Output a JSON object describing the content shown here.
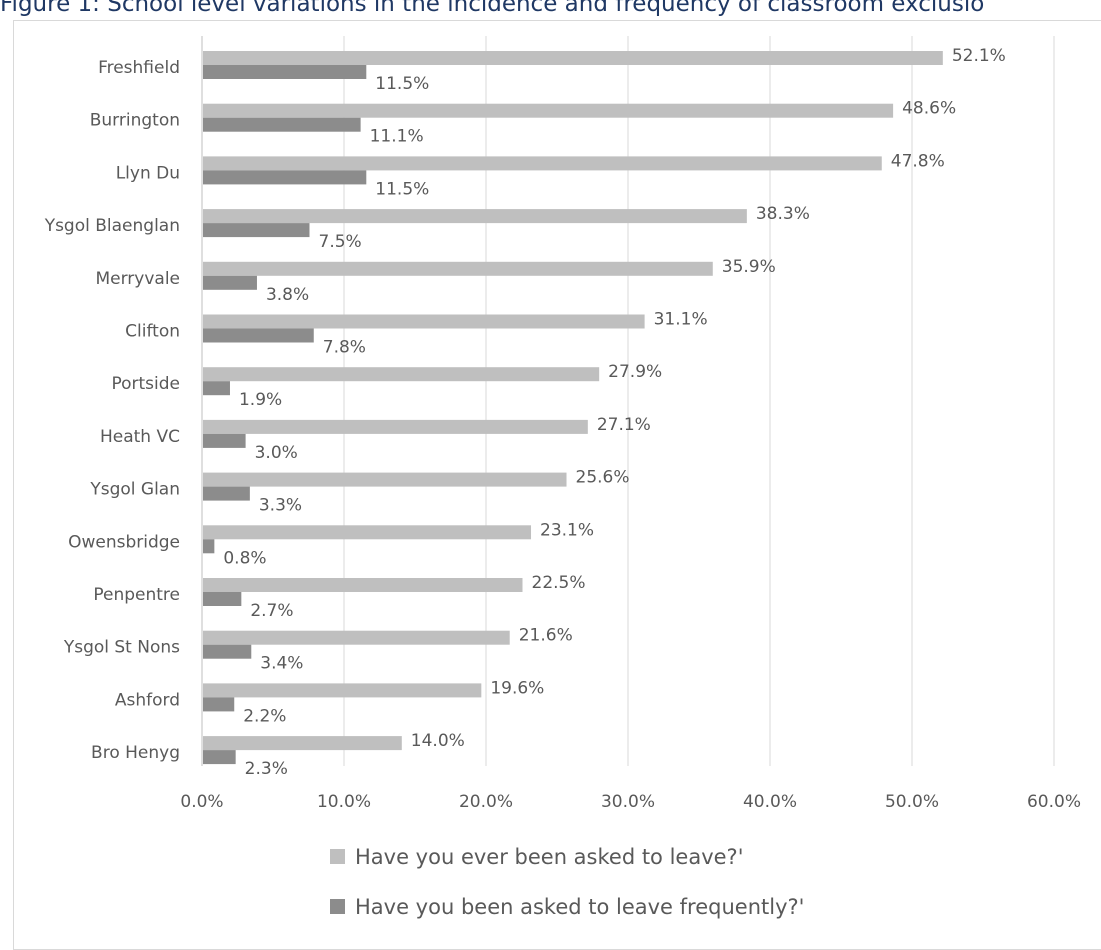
{
  "title": "Figure 1: School level variations in the incidence and frequency of classroom exclusio",
  "chart_data": {
    "type": "bar",
    "orientation": "horizontal",
    "categories": [
      "Freshfield",
      "Burrington",
      "Llyn Du",
      "Ysgol Blaenglan",
      "Merryvale",
      "Clifton",
      "Portside",
      "Heath VC",
      "Ysgol Glan",
      "Owensbridge",
      "Penpentre",
      "Ysgol St Nons",
      "Ashford",
      "Bro Henyg"
    ],
    "series": [
      {
        "name": "Have you ever been asked to leave?'",
        "color": "#bfbfbf",
        "values": [
          52.1,
          48.6,
          47.8,
          38.3,
          35.9,
          31.1,
          27.9,
          27.1,
          25.6,
          23.1,
          22.5,
          21.6,
          19.6,
          14.0
        ],
        "labels": [
          "52.1%",
          "48.6%",
          "47.8%",
          "38.3%",
          "35.9%",
          "31.1%",
          "27.9%",
          "27.1%",
          "25.6%",
          "23.1%",
          "22.5%",
          "21.6%",
          "19.6%",
          "14.0%"
        ]
      },
      {
        "name": "Have you been asked to leave frequently?'",
        "color": "#8c8c8c",
        "values": [
          11.5,
          11.1,
          11.5,
          7.5,
          3.8,
          7.8,
          1.9,
          3.0,
          3.3,
          0.8,
          2.7,
          3.4,
          2.2,
          2.3
        ],
        "labels": [
          "11.5%",
          "11.1%",
          "11.5%",
          "7.5%",
          "3.8%",
          "7.8%",
          "1.9%",
          "3.0%",
          "3.3%",
          "0.8%",
          "2.7%",
          "3.4%",
          "2.2%",
          "2.3%"
        ]
      }
    ],
    "xlim": [
      0,
      60
    ],
    "xticks": [
      "0.0%",
      "10.0%",
      "20.0%",
      "30.0%",
      "40.0%",
      "50.0%",
      "60.0%"
    ],
    "grid": true,
    "legend_position": "bottom"
  }
}
